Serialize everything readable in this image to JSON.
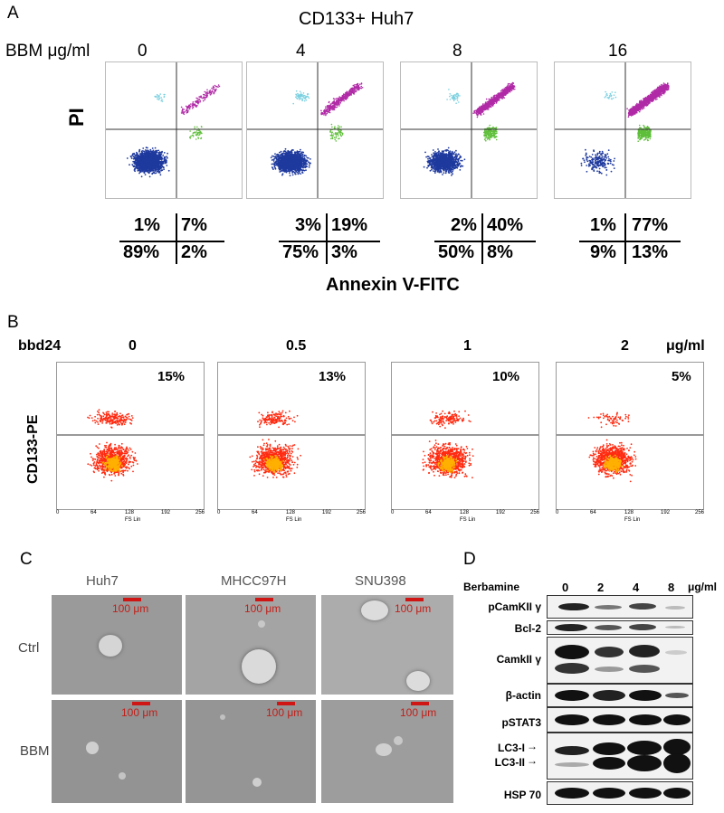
{
  "panelA": {
    "letter": "A",
    "title": "CD133+ Huh7",
    "dose_label": "BBM μg/ml",
    "doses": [
      "0",
      "4",
      "8",
      "16"
    ],
    "y_axis": "PI",
    "x_axis": "Annexin V-FITC",
    "quadrants": [
      {
        "ul": "1%",
        "ur": "7%",
        "ll": "89%",
        "lr": "2%"
      },
      {
        "ul": "3%",
        "ur": "19%",
        "ll": "75%",
        "lr": "3%"
      },
      {
        "ul": "2%",
        "ur": "40%",
        "ll": "50%",
        "lr": "8%"
      },
      {
        "ul": "1%",
        "ur": "77%",
        "ll": "9%",
        "lr": "13%"
      }
    ]
  },
  "panelB": {
    "letter": "B",
    "compound": "bbd24",
    "doses": [
      "0",
      "0.5",
      "1",
      "2"
    ],
    "unit": "μg/ml",
    "y_axis": "CD133-PE",
    "x_axis_tick_label": "FS Lin",
    "x_ticks": [
      "0",
      "64",
      "128",
      "192",
      "256"
    ],
    "percentages": [
      "15%",
      "13%",
      "10%",
      "5%"
    ]
  },
  "panelC": {
    "letter": "C",
    "cell_lines": [
      "Huh7",
      "MHCC97H",
      "SNU398"
    ],
    "rows": [
      "Ctrl",
      "BBM"
    ],
    "scale_bar": "100 μm"
  },
  "panelD": {
    "letter": "D",
    "compound": "Berbamine",
    "doses": [
      "0",
      "2",
      "4",
      "8"
    ],
    "unit": "μg/ml",
    "blots": [
      "pCamKII γ",
      "Bcl-2",
      "CamkII γ",
      "β-actin",
      "pSTAT3",
      "LC3-I",
      "LC3-II",
      "HSP 70"
    ]
  },
  "colors": {
    "annexin_live": "#1f3a9e",
    "annexin_early": "#5fbf3a",
    "annexin_late": "#b02aa6",
    "annexin_necrotic": "#7ad0e0",
    "cd133_dots": "#ff2a10",
    "scale_bar": "#d01515"
  }
}
